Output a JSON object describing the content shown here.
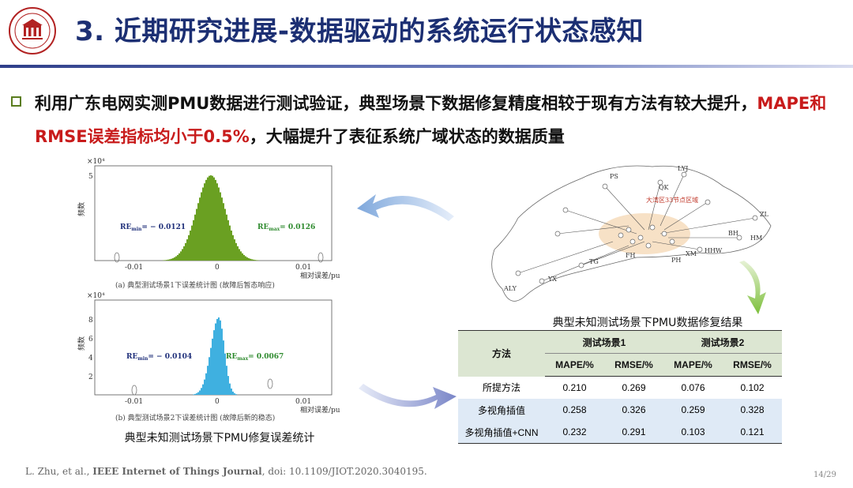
{
  "header": {
    "title": "3. 近期研究进展-数据驱动的系统运行状态感知",
    "logo_text": "SOUTH CHINA UNIV"
  },
  "bullet": {
    "part1": "利用广东电网实测PMU数据进行测试验证，典型场景下数据修复精度相较于现有方法有较大提升，",
    "highlight": "MAPE和RMSE误差指标均小于0.5%",
    "part2": "，大幅提升了表征系统广域状态的数据质量"
  },
  "histograms": [
    {
      "y_multiplier": "×10⁴",
      "ylabel": "频数",
      "xlabel": "相对误差/pu",
      "x_ticks": [
        "-0.01",
        "0",
        "0.01"
      ],
      "y_ticks": [
        "5"
      ],
      "re_min": "RE",
      "re_min_sub": "min",
      "re_min_value": "= − 0.0121",
      "re_max": "RE",
      "re_max_sub": "max",
      "re_max_value": "= 0.0126",
      "caption": "(a) 典型测试场景1下误差统计图 (故障后暂态响应)",
      "color": "#6aa022",
      "re_max_color": "#2d8a2d"
    },
    {
      "y_multiplier": "×10⁴",
      "ylabel": "频数",
      "xlabel": "相对误差/pu",
      "x_ticks": [
        "-0.01",
        "0",
        "0.01"
      ],
      "y_ticks": [
        "8",
        "6",
        "4",
        "2"
      ],
      "re_min": "RE",
      "re_min_sub": "min",
      "re_min_value": "= − 0.0104",
      "re_max": "RE",
      "re_max_sub": "max",
      "re_max_value": "= 0.0067",
      "caption": "(b) 典型测试场景2下误差统计图 (故障后新的稳态)",
      "color": "#3fb0e0",
      "re_max_color": "#2d8a2d"
    }
  ],
  "left_caption": "典型未知测试场景下PMU修复误差统计",
  "map": {
    "labels": [
      "LYJ",
      "PS",
      "QK",
      "ZL",
      "HM",
      "BH",
      "XM",
      "HHW",
      "PH",
      "FH",
      "TG",
      "YX",
      "ALY"
    ],
    "region_label": "大湾区33节点区域"
  },
  "table": {
    "title": "典型未知测试场景下PMU数据修复结果",
    "method_header": "方法",
    "scene1": "测试场景1",
    "scene2": "测试场景2",
    "metrics": [
      "MAPE/%",
      "RMSE/%",
      "MAPE/%",
      "RMSE/%"
    ],
    "rows": [
      {
        "method": "所提方法",
        "v": [
          "0.210",
          "0.269",
          "0.076",
          "0.102"
        ]
      },
      {
        "method": "多视角插值",
        "v": [
          "0.258",
          "0.326",
          "0.259",
          "0.328"
        ]
      },
      {
        "method": "多视角插值+CNN",
        "v": [
          "0.232",
          "0.291",
          "0.103",
          "0.121"
        ]
      }
    ]
  },
  "citation": {
    "authors": "L. Zhu, et al., ",
    "journal": "IEEE Internet of Things Journal",
    "rest": ", doi: 10.1109/JIOT.2020.3040195."
  },
  "page_number": "14/29",
  "colors": {
    "title": "#1c2f73",
    "highlight": "#c81b1b",
    "table_header": "#dce6d2",
    "table_row": "#dfeaf6"
  }
}
